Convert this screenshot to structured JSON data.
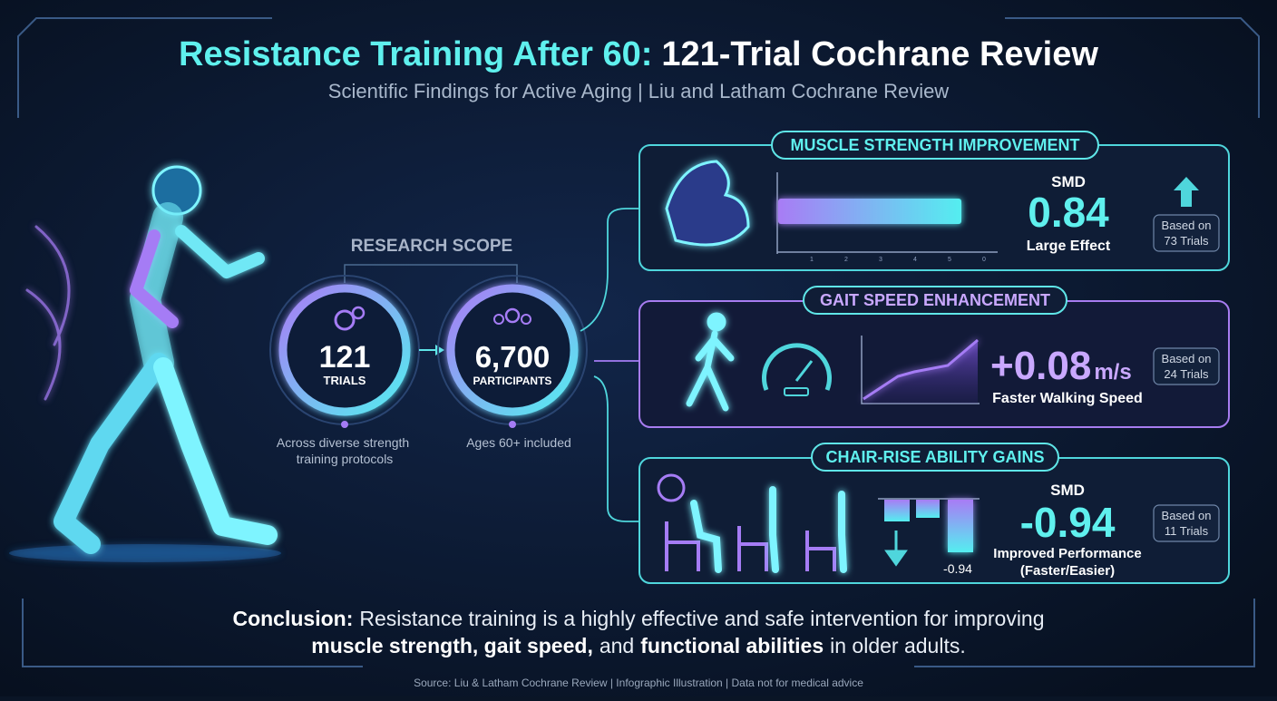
{
  "header": {
    "title_accent": "Resistance Training After 60:",
    "title_rest": "121-Trial Cochrane Review",
    "subtitle": "Scientific Findings for Active Aging | Liu and Latham Cochrane Review"
  },
  "research_scope": {
    "label": "RESEARCH SCOPE",
    "circles": [
      {
        "value": "121",
        "unit": "TRIALS",
        "caption": [
          "Across diverse strength",
          "training protocols"
        ]
      },
      {
        "value": "6,700",
        "unit": "PARTICIPANTS",
        "caption": [
          "Ages 60+ included"
        ]
      }
    ]
  },
  "panels": [
    {
      "title": "MUSCLE STRENGTH IMPROVEMENT",
      "metric": "SMD",
      "value": "0.84",
      "description": [
        "Large Effect"
      ],
      "badge": [
        "Based on",
        "73 Trials"
      ],
      "axis_labels": [
        "1",
        "2",
        "3",
        "4",
        "5",
        "0"
      ]
    },
    {
      "title": "GAIT SPEED ENHANCEMENT",
      "value": "+0.08",
      "unit": "m/s",
      "description": [
        "Faster Walking Speed"
      ],
      "badge": [
        "Based on",
        "24 Trials"
      ]
    },
    {
      "title": "CHAIR-RISE ABILITY GAINS",
      "metric": "SMD",
      "value": "-0.94",
      "description": [
        "Improved Performance",
        "(Faster/Easier)"
      ],
      "badge": [
        "Based on",
        "11 Trials"
      ],
      "chart_label": "-0.94"
    }
  ],
  "conclusion": {
    "line1": [
      "Conclusion:",
      "Resistance training is a highly effective and safe intervention for improving"
    ],
    "line2": [
      "muscle strength, gait speed,",
      "and",
      "functional abilities",
      "in older adults."
    ]
  },
  "footer": {
    "source": "Source: Liu & Latham Cochrane Review | Infographic Illustration | Data not for medical advice"
  }
}
